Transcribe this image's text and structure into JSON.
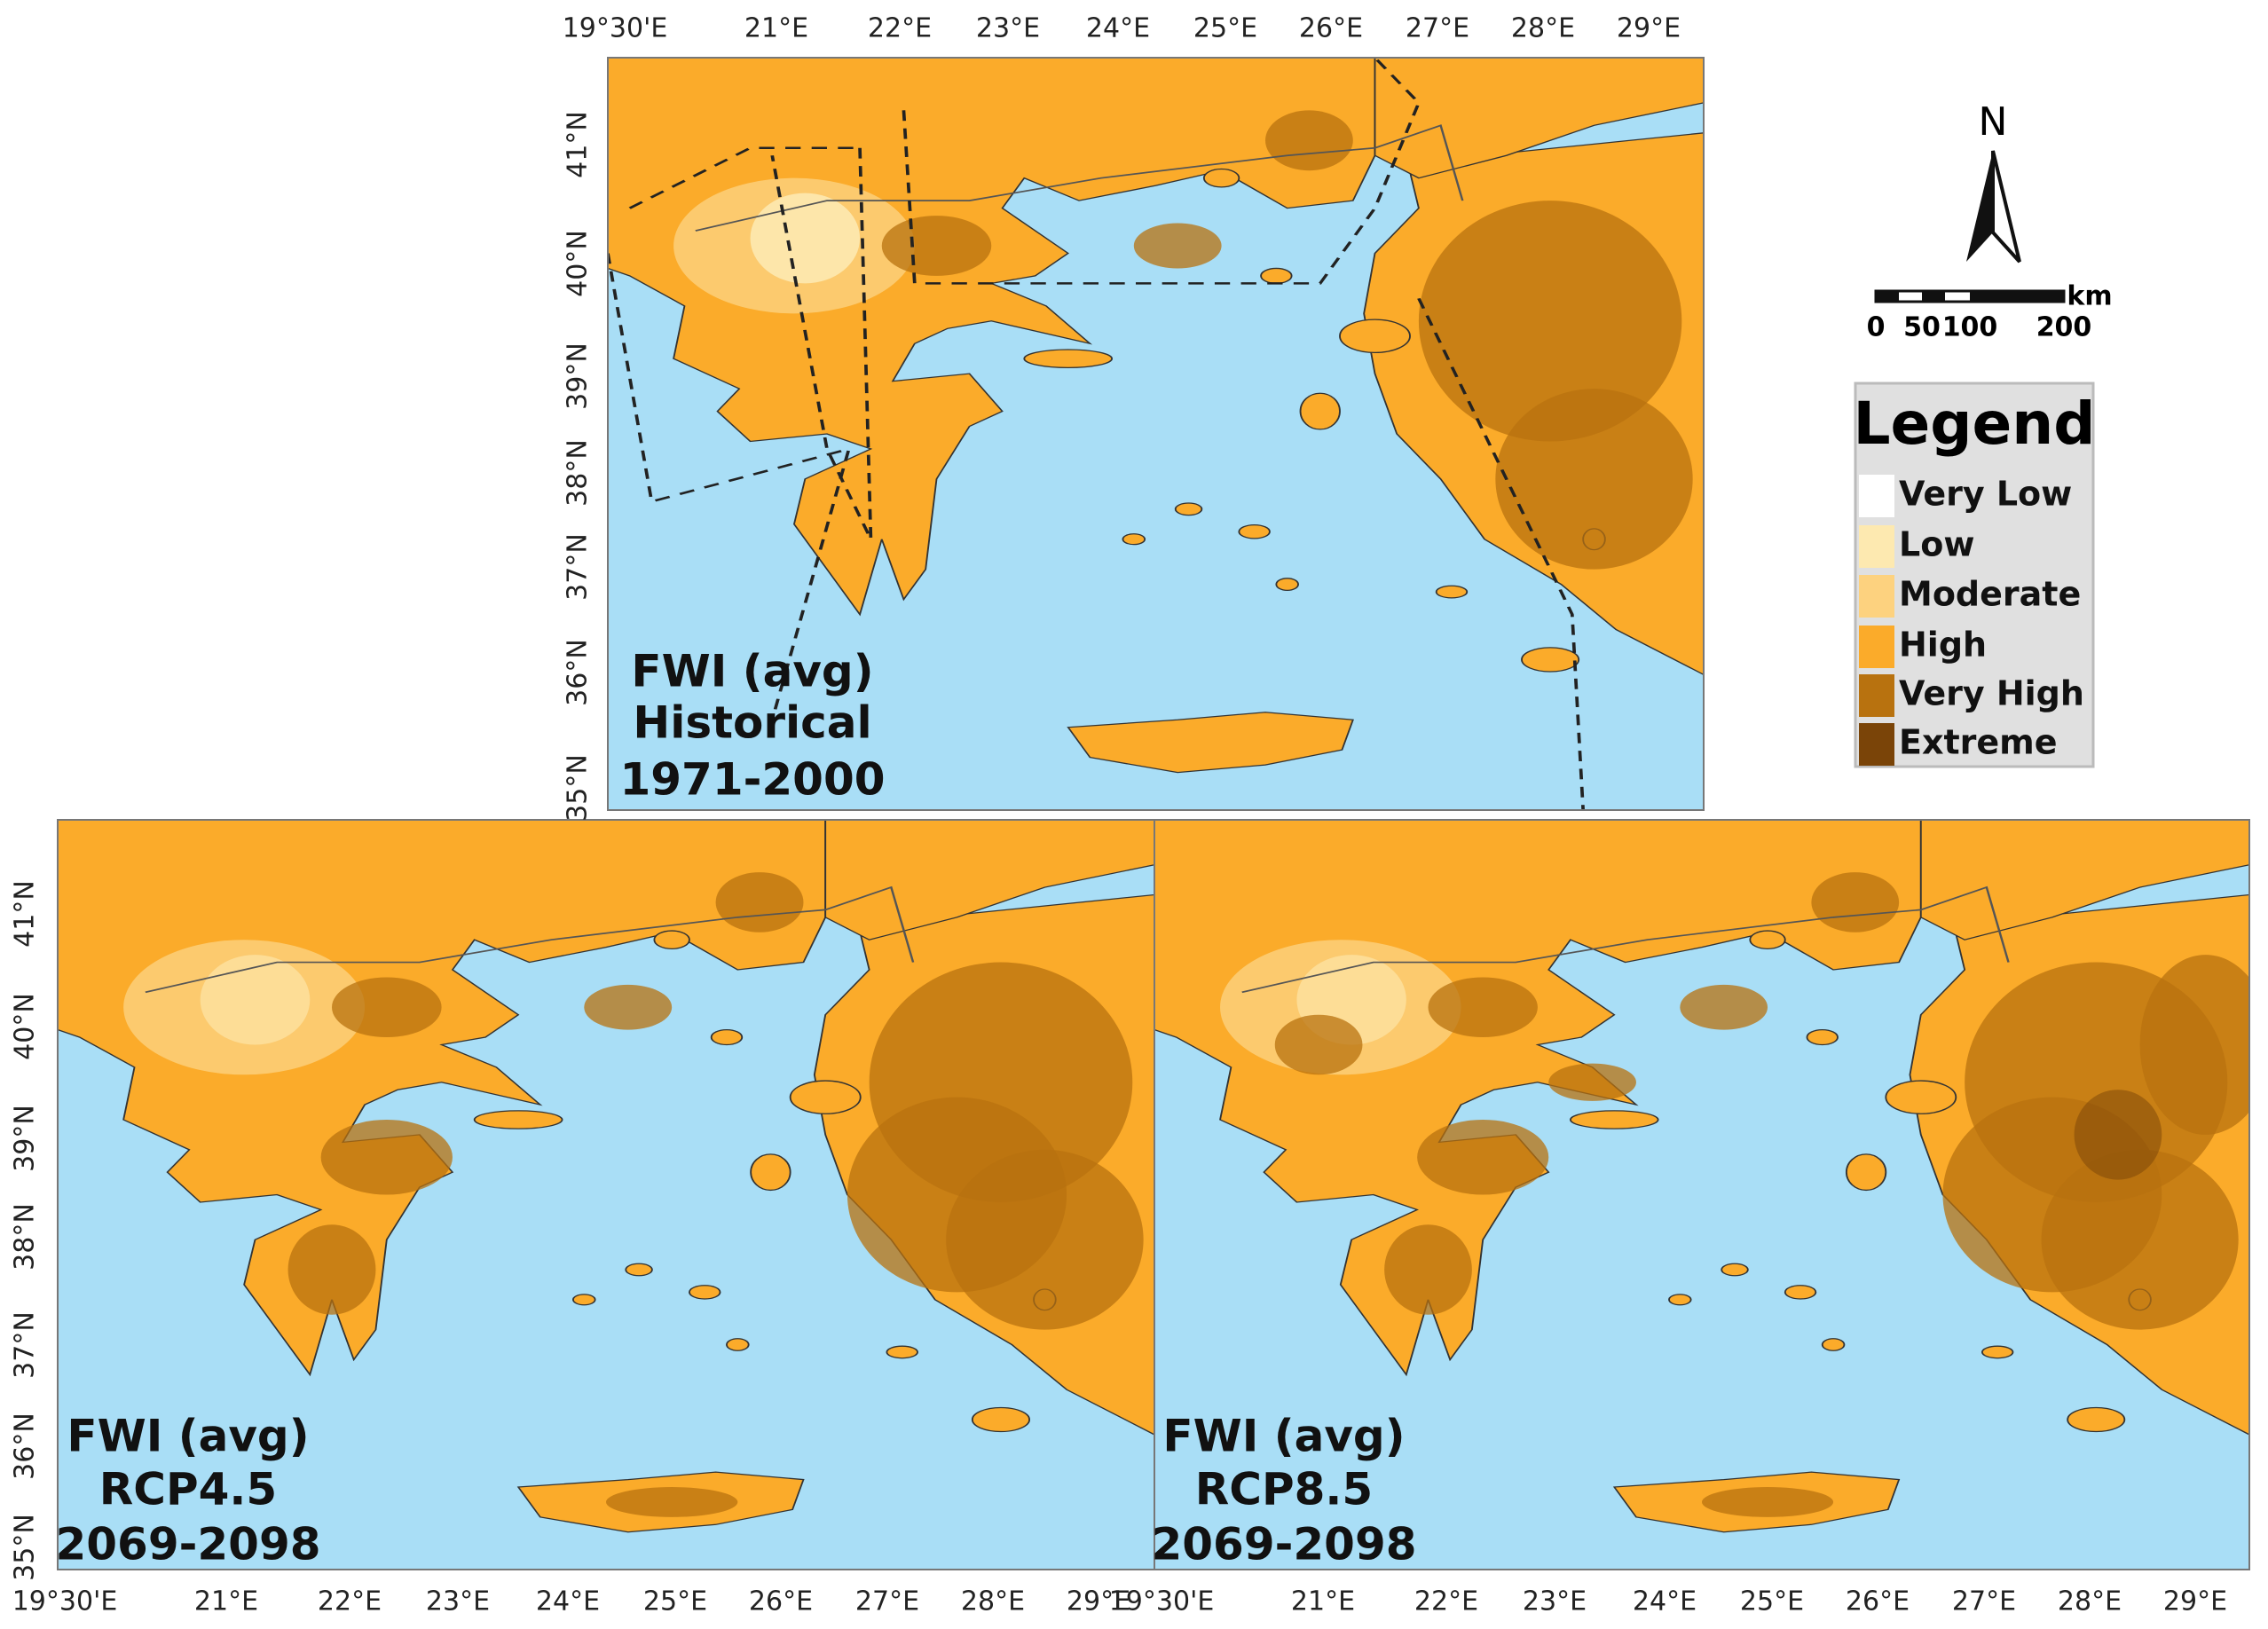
{
  "panels": [
    {
      "lines": [
        "FWI (avg)",
        "Historical",
        "1971-2000"
      ]
    },
    {
      "lines": [
        "FWI (avg)",
        "RCP4.5",
        "2069-2098"
      ]
    },
    {
      "lines": [
        "FWI (avg)",
        "RCP8.5",
        "2069-2098"
      ]
    }
  ],
  "lon_labels": [
    "19°30'E",
    "21°E",
    "22°E",
    "23°E",
    "24°E",
    "25°E",
    "26°E",
    "27°E",
    "28°E",
    "29°E"
  ],
  "lat_labels": [
    "41°N",
    "40°N",
    "39°N",
    "38°N",
    "37°N",
    "36°N",
    "35°N"
  ],
  "north": "N",
  "scale": {
    "unit": "km",
    "labels": [
      "0",
      "50",
      "100",
      "200"
    ]
  },
  "legend": {
    "title": "Legend",
    "items": [
      {
        "label": "Very Low",
        "color": "#ffffff"
      },
      {
        "label": "Low",
        "color": "#fde9b0"
      },
      {
        "label": "Moderate",
        "color": "#fdd27f"
      },
      {
        "label": "High",
        "color": "#fbab2a"
      },
      {
        "label": "Very High",
        "color": "#b8720f"
      },
      {
        "label": "Extreme",
        "color": "#7a4408"
      }
    ]
  }
}
